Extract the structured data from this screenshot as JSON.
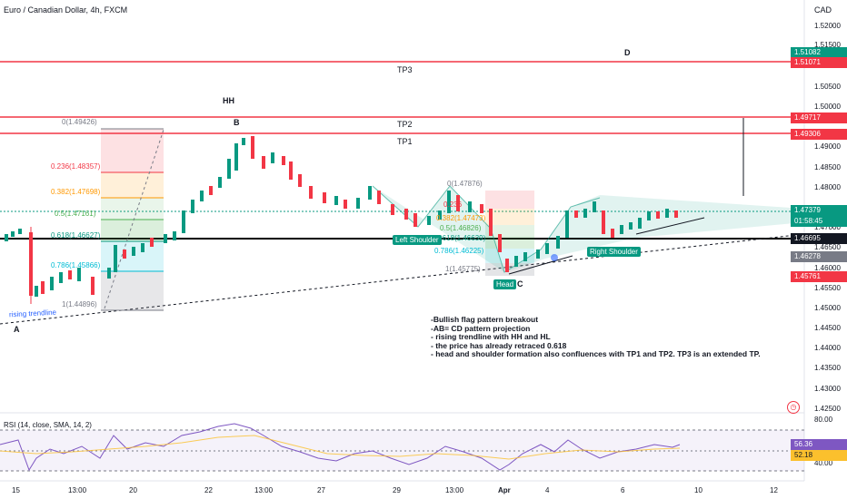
{
  "title": "Euro / Canadian Dollar, 4h, FXCM",
  "currency": "CAD",
  "price_axis": [
    "1.52000",
    "1.51500",
    "1.50500",
    "1.50000",
    "1.49000",
    "1.48500",
    "1.48000",
    "1.47000",
    "1.46500",
    "1.46000",
    "1.45500",
    "1.45000",
    "1.44500",
    "1.44000",
    "1.43500",
    "1.43000",
    "1.42500"
  ],
  "price_tags": {
    "tp3_top": "1.51082",
    "tp3": "1.51071",
    "tp2": "1.49717",
    "tp1": "1.49306",
    "current": "1.47379",
    "countdown": "01:58:45",
    "neck": "1.46695",
    "low1": "1.46278",
    "low2": "1.45761"
  },
  "markers": {
    "a": "A",
    "b": "B",
    "c": "C",
    "d": "D",
    "hh": "HH",
    "tp1": "TP1",
    "tp2": "TP2",
    "tp3": "TP3"
  },
  "fib_left": [
    "0(1.49426)",
    "0.236(1.48357)",
    "0.382(1.47698)",
    "0.5(1.47161)",
    "0.618(1.46627)",
    "0.786(1.45866)",
    "1(1.44896)"
  ],
  "fib_right": [
    "0(1.47876)",
    "0.236",
    "0.382(1.47473)",
    "0.5(1.46826)",
    "0.618(1.46639)",
    "0.786(1.46225)",
    "1(1.45775)"
  ],
  "pattern_labels": {
    "left": "Left Shoulder",
    "head": "Head",
    "right": "Right Shoulder"
  },
  "trendline_label": "rising trendline",
  "notes": [
    "-Bullish flag pattern breakout",
    "-AB= CD pattern projection",
    "- rising trendline with HH and HL",
    "- the price has already retraced 0.618",
    "- head and shoulder formation also confluences with TP1 and TP2. TP3 is an extended TP."
  ],
  "rsi": {
    "title": "RSI (14, close, SMA, 14, 2)",
    "level_80": "80.00",
    "level_40": "40.00",
    "value": "56.36",
    "sma": "52.18"
  },
  "x_axis": [
    "15",
    "13:00",
    "20",
    "22",
    "13:00",
    "27",
    "29",
    "13:00",
    "Apr",
    "4",
    "6",
    "10",
    "12"
  ],
  "colors": {
    "red": "#f23645",
    "green": "#089981",
    "blue": "#2962ff",
    "rsi": "#7e57c2"
  }
}
